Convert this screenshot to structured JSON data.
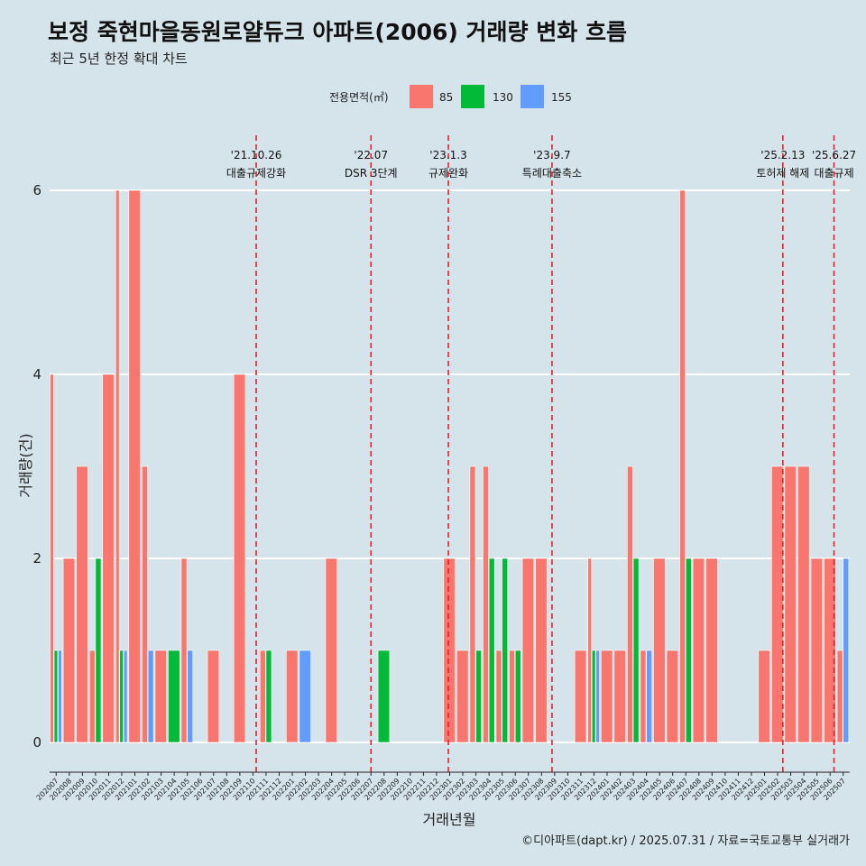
{
  "chart_data": {
    "type": "bar",
    "title": "보정 죽현마을동원로얄듀크 아파트(2006) 거래량 변화 흐름",
    "subtitle": "최근 5년 한정 확대 차트",
    "xlabel": "거래년월",
    "ylabel": "거래량(건)",
    "caption": "©디아파트(dapt.kr) / 2025.07.31 / 자료=국토교통부 실거래가",
    "ylim": [
      0,
      6.6
    ],
    "yticks": [
      0,
      2,
      4,
      6
    ],
    "legend": {
      "title": "전용면적(㎡)",
      "placement": "top",
      "items": [
        {
          "label": "85",
          "color": "#f8766d"
        },
        {
          "label": "130",
          "color": "#00ba38"
        },
        {
          "label": "155",
          "color": "#619cff"
        }
      ]
    },
    "categories": [
      "202007",
      "202008",
      "202009",
      "202010",
      "202011",
      "202012",
      "202101",
      "202102",
      "202103",
      "202104",
      "202105",
      "202106",
      "202107",
      "202108",
      "202109",
      "202110",
      "202111",
      "202112",
      "202201",
      "202202",
      "202203",
      "202204",
      "202205",
      "202206",
      "202207",
      "202208",
      "202209",
      "202210",
      "202211",
      "202212",
      "202301",
      "202302",
      "202303",
      "202304",
      "202305",
      "202306",
      "202307",
      "202308",
      "202309",
      "202310",
      "202311",
      "202312",
      "202401",
      "202402",
      "202403",
      "202404",
      "202405",
      "202406",
      "202407",
      "202408",
      "202409",
      "202410",
      "202411",
      "202412",
      "202501",
      "202502",
      "202503",
      "202504",
      "202505",
      "202506",
      "202507"
    ],
    "series": [
      {
        "name": "85",
        "color": "#f8766d",
        "values": [
          4,
          2,
          3,
          1,
          4,
          6,
          6,
          3,
          1,
          0,
          2,
          0,
          1,
          0,
          4,
          0,
          1,
          0,
          1,
          0,
          0,
          2,
          0,
          0,
          0,
          0,
          0,
          0,
          0,
          0,
          2,
          1,
          3,
          3,
          1,
          1,
          2,
          2,
          0,
          0,
          1,
          2,
          1,
          1,
          3,
          1,
          2,
          1,
          6,
          2,
          2,
          0,
          0,
          0,
          1,
          3,
          3,
          3,
          2,
          2,
          1
        ]
      },
      {
        "name": "130",
        "color": "#00ba38",
        "values": [
          1,
          0,
          0,
          2,
          0,
          1,
          0,
          0,
          0,
          1,
          0,
          0,
          0,
          0,
          0,
          0,
          1,
          0,
          0,
          0,
          0,
          0,
          0,
          0,
          0,
          1,
          0,
          0,
          0,
          0,
          0,
          0,
          1,
          2,
          2,
          1,
          0,
          0,
          0,
          0,
          0,
          1,
          0,
          0,
          2,
          0,
          0,
          0,
          2,
          0,
          0,
          0,
          0,
          0,
          0,
          0,
          0,
          0,
          0,
          0,
          0
        ]
      },
      {
        "name": "155",
        "color": "#619cff",
        "values": [
          1,
          0,
          0,
          0,
          0,
          1,
          0,
          1,
          0,
          0,
          1,
          0,
          0,
          0,
          0,
          0,
          0,
          0,
          0,
          1,
          0,
          0,
          0,
          0,
          0,
          0,
          0,
          0,
          0,
          0,
          0,
          0,
          0,
          0,
          0,
          0,
          0,
          0,
          0,
          0,
          0,
          1,
          0,
          0,
          0,
          1,
          0,
          0,
          0,
          0,
          0,
          0,
          0,
          0,
          0,
          0,
          0,
          0,
          0,
          0,
          2
        ]
      }
    ],
    "events": [
      {
        "date": "'21.10.26",
        "label": "대출규제강화",
        "at": 15.75
      },
      {
        "date": "'22.07",
        "label": "DSR 3단계",
        "at": 24.5
      },
      {
        "date": "'23.1.3",
        "label": "규제완화",
        "at": 30.4
      },
      {
        "date": "'23.9.7",
        "label": "특례대출축소",
        "at": 38.3
      },
      {
        "date": "'25.2.13",
        "label": "토허제 해제",
        "at": 55.9
      },
      {
        "date": "'25.6.27",
        "label": "대출규제",
        "at": 59.8
      }
    ]
  }
}
